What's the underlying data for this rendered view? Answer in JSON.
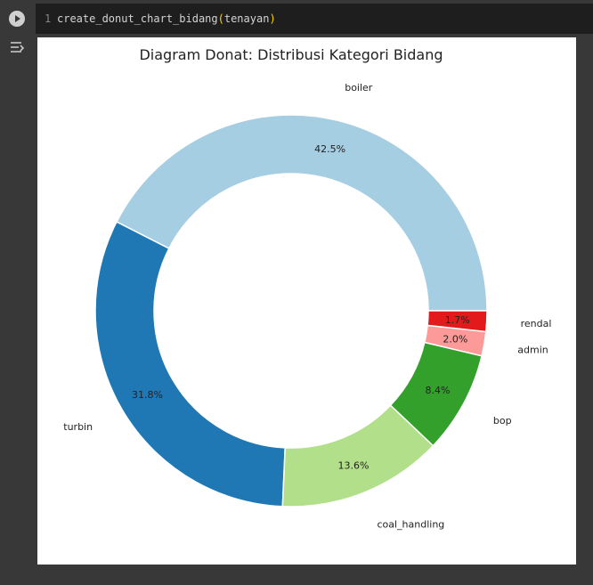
{
  "cell": {
    "line_number": "1",
    "code": {
      "func": "create_donut_chart_bidang",
      "open": "(",
      "arg": "tenayan",
      "close": ")"
    }
  },
  "chart_data": {
    "type": "pie",
    "title": "Diagram Donat: Distribusi Kategori Bidang",
    "labels": [
      "boiler",
      "turbin",
      "coal_handling",
      "bop",
      "admin",
      "rendal"
    ],
    "values": [
      42.5,
      31.8,
      13.6,
      8.4,
      2.0,
      1.7
    ],
    "value_labels": [
      "42.5%",
      "31.8%",
      "13.6%",
      "8.4%",
      "2.0%",
      "1.7%"
    ],
    "colors": [
      "#a6cee3",
      "#1f78b4",
      "#b2df8a",
      "#33a02c",
      "#fb9a99",
      "#e31a1c"
    ],
    "start_angle": 0,
    "direction": "counterclockwise",
    "donut": true
  }
}
